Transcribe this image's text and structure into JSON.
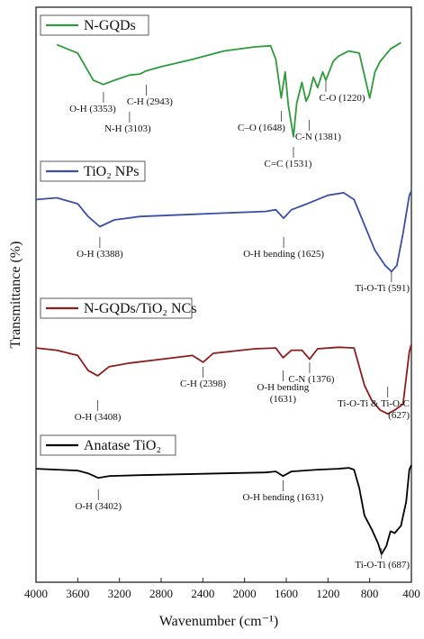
{
  "chart_data": {
    "type": "line",
    "xlabel": "Wavenumber (cm⁻¹)",
    "ylabel": "Transmittance (%)",
    "xlim": [
      4000,
      400
    ],
    "x_ticks": [
      "4000",
      "3600",
      "3200",
      "2800",
      "2400",
      "2000",
      "1600",
      "1200",
      "800",
      "400"
    ],
    "y_ticks": false,
    "grid": false,
    "series": [
      {
        "name": "N-GQDs",
        "color": "#2e9a3c",
        "points": [
          [
            3800,
            0.04
          ],
          [
            3600,
            0.12
          ],
          [
            3450,
            0.38
          ],
          [
            3353,
            0.42
          ],
          [
            3250,
            0.38
          ],
          [
            3103,
            0.33
          ],
          [
            3000,
            0.32
          ],
          [
            2943,
            0.29
          ],
          [
            2800,
            0.25
          ],
          [
            2500,
            0.18
          ],
          [
            2200,
            0.1
          ],
          [
            1900,
            0.06
          ],
          [
            1750,
            0.05
          ],
          [
            1700,
            0.18
          ],
          [
            1648,
            0.55
          ],
          [
            1610,
            0.3
          ],
          [
            1580,
            0.62
          ],
          [
            1531,
            0.92
          ],
          [
            1500,
            0.6
          ],
          [
            1450,
            0.4
          ],
          [
            1410,
            0.58
          ],
          [
            1381,
            0.52
          ],
          [
            1340,
            0.35
          ],
          [
            1300,
            0.45
          ],
          [
            1250,
            0.3
          ],
          [
            1220,
            0.38
          ],
          [
            1150,
            0.2
          ],
          [
            1100,
            0.15
          ],
          [
            1000,
            0.1
          ],
          [
            900,
            0.12
          ],
          [
            800,
            0.55
          ],
          [
            750,
            0.3
          ],
          [
            700,
            0.2
          ],
          [
            600,
            0.08
          ],
          [
            500,
            0.02
          ]
        ],
        "annotations": [
          {
            "label": "O-H (3353)",
            "x": 3353
          },
          {
            "label": "N-H (3103)",
            "x": 3103
          },
          {
            "label": "C-H (2943)",
            "x": 2943
          },
          {
            "label": "C–O (1648)",
            "x": 1648
          },
          {
            "label": "C=C (1531)",
            "x": 1531
          },
          {
            "label": "C-N (1381)",
            "x": 1381
          },
          {
            "label": "C-O (1220)",
            "x": 1220
          }
        ]
      },
      {
        "name": "TiO₂ NPs",
        "color": "#3a4fa8",
        "points": [
          [
            4000,
            0.1
          ],
          [
            3800,
            0.08
          ],
          [
            3600,
            0.15
          ],
          [
            3500,
            0.3
          ],
          [
            3388,
            0.42
          ],
          [
            3250,
            0.34
          ],
          [
            3000,
            0.3
          ],
          [
            2600,
            0.28
          ],
          [
            2200,
            0.26
          ],
          [
            1800,
            0.24
          ],
          [
            1700,
            0.22
          ],
          [
            1625,
            0.32
          ],
          [
            1550,
            0.22
          ],
          [
            1400,
            0.15
          ],
          [
            1200,
            0.05
          ],
          [
            1050,
            0.02
          ],
          [
            950,
            0.1
          ],
          [
            850,
            0.4
          ],
          [
            750,
            0.7
          ],
          [
            650,
            0.88
          ],
          [
            591,
            0.95
          ],
          [
            540,
            0.88
          ],
          [
            480,
            0.5
          ],
          [
            420,
            0.05
          ],
          [
            400,
            0.0
          ]
        ],
        "annotations": [
          {
            "label": "O-H (3388)",
            "x": 3388
          },
          {
            "label": "O-H bending (1625)",
            "x": 1625
          },
          {
            "label": "Ti-O-Ti (591)",
            "x": 591
          }
        ]
      },
      {
        "name": "N-GQDs/TiO₂ NCs",
        "color": "#8e1c1c",
        "points": [
          [
            4000,
            0.05
          ],
          [
            3800,
            0.08
          ],
          [
            3600,
            0.15
          ],
          [
            3500,
            0.35
          ],
          [
            3408,
            0.42
          ],
          [
            3300,
            0.3
          ],
          [
            3100,
            0.25
          ],
          [
            2800,
            0.2
          ],
          [
            2500,
            0.15
          ],
          [
            2398,
            0.24
          ],
          [
            2300,
            0.12
          ],
          [
            2100,
            0.09
          ],
          [
            1900,
            0.06
          ],
          [
            1700,
            0.05
          ],
          [
            1631,
            0.18
          ],
          [
            1550,
            0.08
          ],
          [
            1450,
            0.08
          ],
          [
            1376,
            0.2
          ],
          [
            1300,
            0.06
          ],
          [
            1100,
            0.04
          ],
          [
            950,
            0.05
          ],
          [
            900,
            0.3
          ],
          [
            850,
            0.55
          ],
          [
            780,
            0.75
          ],
          [
            700,
            0.88
          ],
          [
            627,
            0.93
          ],
          [
            560,
            0.88
          ],
          [
            480,
            0.8
          ],
          [
            420,
            0.1
          ],
          [
            400,
            0.0
          ]
        ],
        "annotations": [
          {
            "label": "O-H (3408)",
            "x": 3408
          },
          {
            "label": "C-H (2398)",
            "x": 2398
          },
          {
            "label": "O-H bending",
            "label2": "(1631)",
            "x": 1631
          },
          {
            "label": "C-N (1376)",
            "x": 1376
          },
          {
            "label": "Ti-O-Ti & Ti-O-C",
            "label2": "(627)",
            "x": 627
          }
        ]
      },
      {
        "name": "Anatase TiO₂",
        "color": "#000000",
        "points": [
          [
            4000,
            0.04
          ],
          [
            3800,
            0.05
          ],
          [
            3600,
            0.06
          ],
          [
            3500,
            0.09
          ],
          [
            3402,
            0.14
          ],
          [
            3300,
            0.12
          ],
          [
            3000,
            0.11
          ],
          [
            2600,
            0.1
          ],
          [
            2200,
            0.09
          ],
          [
            1800,
            0.08
          ],
          [
            1700,
            0.07
          ],
          [
            1631,
            0.12
          ],
          [
            1550,
            0.07
          ],
          [
            1300,
            0.05
          ],
          [
            1100,
            0.04
          ],
          [
            1000,
            0.03
          ],
          [
            950,
            0.05
          ],
          [
            900,
            0.25
          ],
          [
            850,
            0.55
          ],
          [
            780,
            0.7
          ],
          [
            720,
            0.85
          ],
          [
            687,
            0.97
          ],
          [
            640,
            0.88
          ],
          [
            600,
            0.72
          ],
          [
            560,
            0.74
          ],
          [
            500,
            0.66
          ],
          [
            450,
            0.4
          ],
          [
            420,
            0.05
          ],
          [
            400,
            0.0
          ]
        ],
        "annotations": [
          {
            "label": "O-H (3402)",
            "x": 3402
          },
          {
            "label": "O-H bending (1631)",
            "x": 1631
          },
          {
            "label": "Ti-O-Ti (687)",
            "x": 687
          }
        ]
      }
    ]
  }
}
